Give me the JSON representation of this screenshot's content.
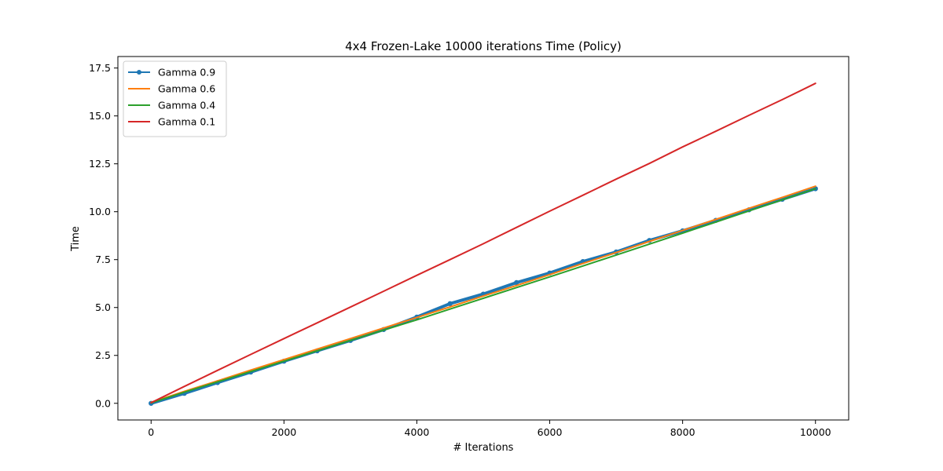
{
  "chart_data": {
    "type": "line",
    "title": "4x4 Frozen-Lake 10000 iterations  Time (Policy)",
    "xlabel": "# Iterations",
    "ylabel": "Time",
    "xlim": [
      -500,
      10500
    ],
    "ylim": [
      -0.87,
      18.1
    ],
    "xticks": [
      0,
      2000,
      4000,
      6000,
      8000,
      10000
    ],
    "xtick_labels": [
      "0",
      "2000",
      "4000",
      "6000",
      "8000",
      "10000"
    ],
    "yticks": [
      0.0,
      2.5,
      5.0,
      7.5,
      10.0,
      12.5,
      15.0,
      17.5
    ],
    "ytick_labels": [
      "0.0",
      "2.5",
      "5.0",
      "7.5",
      "10.0",
      "12.5",
      "15.0",
      "17.5"
    ],
    "grid": false,
    "legend_position": "top-left",
    "series": [
      {
        "name": "Gamma 0.9",
        "color": "#1f77b4",
        "marker": "circle",
        "x": [
          0,
          500,
          1000,
          1500,
          2000,
          2500,
          3000,
          3500,
          4000,
          4500,
          5000,
          5500,
          6000,
          6500,
          7000,
          7500,
          8000,
          8500,
          9000,
          9500,
          10000
        ],
        "y": [
          0.0,
          0.52,
          1.08,
          1.63,
          2.2,
          2.74,
          3.28,
          3.85,
          4.5,
          5.2,
          5.7,
          6.3,
          6.8,
          7.4,
          7.9,
          8.5,
          9.0,
          9.55,
          10.1,
          10.65,
          11.2
        ]
      },
      {
        "name": "Gamma 0.6",
        "color": "#ff7f0e",
        "marker": "none",
        "x": [
          0,
          500,
          1000,
          1500,
          2000,
          2500,
          3000,
          3500,
          4000,
          4500,
          5000,
          5500,
          6000,
          6500,
          7000,
          7500,
          8000,
          8500,
          9000,
          9500,
          10000
        ],
        "y": [
          0.05,
          0.62,
          1.17,
          1.73,
          2.28,
          2.83,
          3.38,
          3.93,
          4.48,
          5.03,
          5.6,
          6.15,
          6.72,
          7.3,
          7.87,
          8.45,
          9.02,
          9.6,
          10.18,
          10.75,
          11.33
        ]
      },
      {
        "name": "Gamma 0.4",
        "color": "#2ca02c",
        "marker": "none",
        "x": [
          0,
          500,
          1000,
          1500,
          2000,
          2500,
          3000,
          3500,
          4000,
          4500,
          5000,
          5500,
          6000,
          6500,
          7000,
          7500,
          8000,
          8500,
          9000,
          9500,
          10000
        ],
        "y": [
          0.02,
          0.58,
          1.12,
          1.66,
          2.2,
          2.74,
          3.28,
          3.82,
          4.36,
          4.92,
          5.48,
          6.04,
          6.6,
          7.17,
          7.74,
          8.31,
          8.88,
          9.46,
          10.04,
          10.62,
          11.2
        ]
      },
      {
        "name": "Gamma 0.1",
        "color": "#d62728",
        "marker": "none",
        "x": [
          0,
          500,
          1000,
          1500,
          2000,
          2500,
          3000,
          3500,
          4000,
          4500,
          5000,
          5500,
          6000,
          6500,
          7000,
          7500,
          8000,
          8500,
          9000,
          9500,
          10000
        ],
        "y": [
          0.03,
          0.88,
          1.72,
          2.55,
          3.38,
          4.2,
          5.02,
          5.85,
          6.68,
          7.5,
          8.33,
          9.18,
          10.03,
          10.86,
          11.7,
          12.52,
          13.38,
          14.2,
          15.03,
          15.85,
          16.7
        ]
      }
    ]
  }
}
